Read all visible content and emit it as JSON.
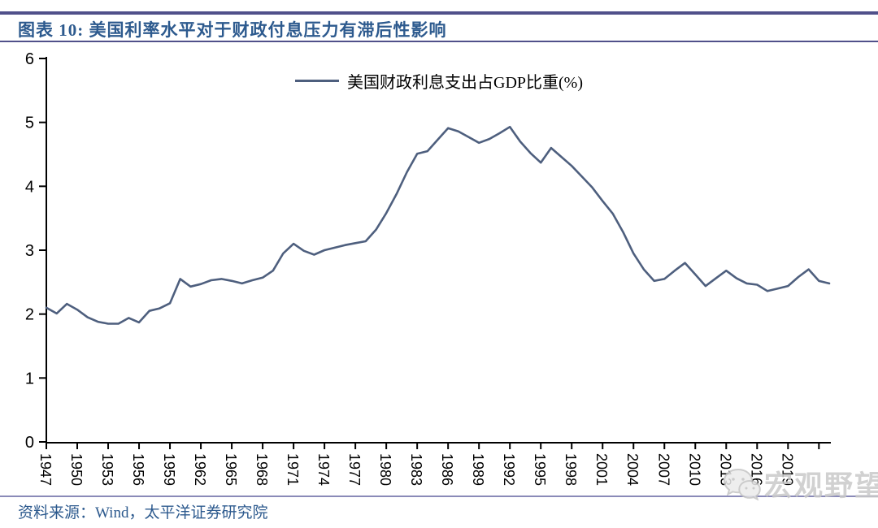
{
  "header": {
    "title": "图表 10: 美国利率水平对于财政付息压力有滞后性影响"
  },
  "source": {
    "text": "资料来源：Wind，太平洋证券研究院"
  },
  "watermark": {
    "icon": "wechat-icon",
    "text": "宏观野望"
  },
  "colors": {
    "accent_bar": "#50508A",
    "bottom_rule": "#8A8AB8",
    "title_text": "#2D5A8E",
    "series_line": "#4E5F7E",
    "axis": "#000000",
    "watermark": "#C9C9C9"
  },
  "chart_data": {
    "type": "line",
    "title": "图表 10: 美国利率水平对于财政付息压力有滞后性影响",
    "legend": [
      "美国财政利息支出占GDP比重(%)"
    ],
    "legend_position": "top-center",
    "grid": false,
    "ylim": [
      0,
      6
    ],
    "y_ticks": [
      0,
      1,
      2,
      3,
      4,
      5,
      6
    ],
    "x_tick_years": [
      1947,
      1950,
      1953,
      1956,
      1959,
      1962,
      1965,
      1968,
      1971,
      1974,
      1977,
      1980,
      1983,
      1986,
      1989,
      1992,
      1995,
      1998,
      2001,
      2004,
      2007,
      2010,
      2013,
      2016,
      2019,
      2022
    ],
    "x_tick_labels": [
      "1947",
      "1950",
      "1953",
      "1956",
      "1959",
      "1962",
      "1965",
      "1968",
      "1971",
      "1974",
      "1977",
      "1980",
      "1983",
      "1986",
      "1989",
      "1992",
      "1995",
      "1998",
      "2001",
      "2004",
      "2007",
      "2010",
      "2013",
      "2016",
      "2019",
      ""
    ],
    "x": [
      1947,
      1948,
      1949,
      1950,
      1951,
      1952,
      1953,
      1954,
      1955,
      1956,
      1957,
      1958,
      1959,
      1960,
      1961,
      1962,
      1963,
      1964,
      1965,
      1966,
      1967,
      1968,
      1969,
      1970,
      1971,
      1972,
      1973,
      1974,
      1975,
      1976,
      1977,
      1978,
      1979,
      1980,
      1981,
      1982,
      1983,
      1984,
      1985,
      1986,
      1987,
      1988,
      1989,
      1990,
      1991,
      1992,
      1993,
      1994,
      1995,
      1996,
      1997,
      1998,
      1999,
      2000,
      2001,
      2002,
      2003,
      2004,
      2005,
      2006,
      2007,
      2008,
      2009,
      2010,
      2011,
      2012,
      2013,
      2014,
      2015,
      2016,
      2017,
      2018,
      2019,
      2020,
      2021,
      2022,
      2023
    ],
    "series": [
      {
        "name": "美国财政利息支出占GDP比重(%)",
        "values": [
          2.1,
          2.01,
          2.16,
          2.07,
          1.95,
          1.88,
          1.85,
          1.85,
          1.94,
          1.87,
          2.05,
          2.09,
          2.17,
          2.55,
          2.43,
          2.47,
          2.53,
          2.55,
          2.52,
          2.48,
          2.53,
          2.57,
          2.68,
          2.95,
          3.1,
          2.99,
          2.93,
          3.0,
          3.04,
          3.08,
          3.11,
          3.14,
          3.32,
          3.58,
          3.88,
          4.22,
          4.51,
          4.55,
          4.73,
          4.91,
          4.86,
          4.77,
          4.68,
          4.74,
          4.83,
          4.93,
          4.7,
          4.52,
          4.37,
          4.6,
          4.46,
          4.32,
          4.15,
          3.98,
          3.77,
          3.57,
          3.28,
          2.95,
          2.7,
          2.52,
          2.55,
          2.68,
          2.8,
          2.62,
          2.44,
          2.56,
          2.68,
          2.56,
          2.48,
          2.46,
          2.36,
          2.4,
          2.44,
          2.58,
          2.7,
          2.52,
          2.48
        ]
      }
    ]
  }
}
